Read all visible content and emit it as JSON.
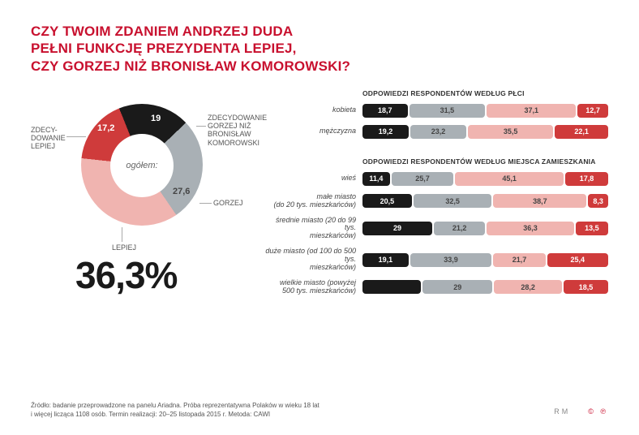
{
  "title": {
    "line1": "CZY TWOIM ZDANIEM ANDRZEJ DUDA",
    "line2": "PEŁNI FUNKCJĘ PREZYDENTA LEPIEJ,",
    "line3": "CZY GORZEJ NIŻ BRONISŁAW KOMOROWSKI?",
    "color": "#c8102e",
    "fontsize": 17
  },
  "colors": {
    "black": "#1a1a1a",
    "grey": "#a9b0b5",
    "pink": "#f0b4b0",
    "red": "#cf3b3b",
    "bg": "#ffffff"
  },
  "donut": {
    "center_label": "ogółem:",
    "segments": [
      {
        "key": "zdecydowanie_gorzej",
        "value": 19.0,
        "color": "#1a1a1a",
        "label": "19",
        "leader": "ZDECYDOWANIE\nGORZEJ NIŻ\nBRONISŁAW\nKOMOROWSKI"
      },
      {
        "key": "gorzej",
        "value": 27.6,
        "color": "#a9b0b5",
        "label": "27,6",
        "leader": "GORZEJ"
      },
      {
        "key": "lepiej",
        "value": 36.3,
        "color": "#f0b4b0",
        "label": "",
        "leader": "LEPIEJ"
      },
      {
        "key": "zdecydowanie_lepiej",
        "value": 17.2,
        "color": "#cf3b3b",
        "label": "17,2",
        "leader": "ZDECY-\nDOWANIE\nLEPIEJ"
      }
    ],
    "big_percent": "36,3%"
  },
  "bars": {
    "section1_title": "ODPOWIEDZI RESPONDENTÓW WEDŁUG PŁCI",
    "section2_title": "ODPOWIEDZI RESPONDENTÓW WEDŁUG MIEJSCA ZAMIESZKANIA",
    "seg_colors": [
      "#1a1a1a",
      "#a9b0b5",
      "#f0b4b0",
      "#cf3b3b"
    ],
    "seg_text_colors": [
      "#ffffff",
      "#444444",
      "#444444",
      "#ffffff"
    ],
    "rows_gender": [
      {
        "label": "kobieta",
        "values": [
          18.7,
          31.5,
          37.1,
          12.7
        ],
        "display": [
          "18,7",
          "31,5",
          "37,1",
          "12,7"
        ]
      },
      {
        "label": "mężczyzna",
        "values": [
          19.2,
          23.2,
          35.5,
          22.1
        ],
        "display": [
          "19,2",
          "23,2",
          "35,5",
          "22,1"
        ]
      }
    ],
    "rows_place": [
      {
        "label": "wieś",
        "values": [
          11.4,
          25.7,
          45.1,
          17.8
        ],
        "display": [
          "11,4",
          "25,7",
          "45,1",
          "17,8"
        ]
      },
      {
        "label": "małe miasto\n(do 20 tys. mieszkańców)",
        "values": [
          20.5,
          32.5,
          38.7,
          8.3
        ],
        "display": [
          "20,5",
          "32,5",
          "38,7",
          "8,3"
        ]
      },
      {
        "label": "średnie miasto (20 do 99 tys.\nmieszkańców)",
        "values": [
          29,
          21.2,
          36.3,
          13.5
        ],
        "display": [
          "29",
          "21,2",
          "36,3",
          "13,5"
        ]
      },
      {
        "label": "duże miasto (od 100 do 500 tys.\nmieszkańców)",
        "values": [
          19.1,
          33.9,
          21.7,
          25.4
        ],
        "display": [
          "19,1",
          "33,9",
          "21,7",
          "25,4"
        ]
      },
      {
        "label": "wielkie miasto (powyżej\n500 tys. mieszkańców)",
        "values": [
          24.3,
          29,
          28.2,
          18.5
        ],
        "display": [
          "",
          "29",
          "28,2",
          "18,5"
        ]
      }
    ]
  },
  "footer": {
    "line1": "Źródło: badanie przeprowadzone na panelu Ariadna. Próba reprezentatywna Polaków w wieku 18 lat",
    "line2": "i więcej licząca 1108 osób. Termin realizacji: 20–25 listopada 2015 r. Metoda: CAWI",
    "marks_rm": "RM",
    "marks_cc": "© ℗"
  }
}
